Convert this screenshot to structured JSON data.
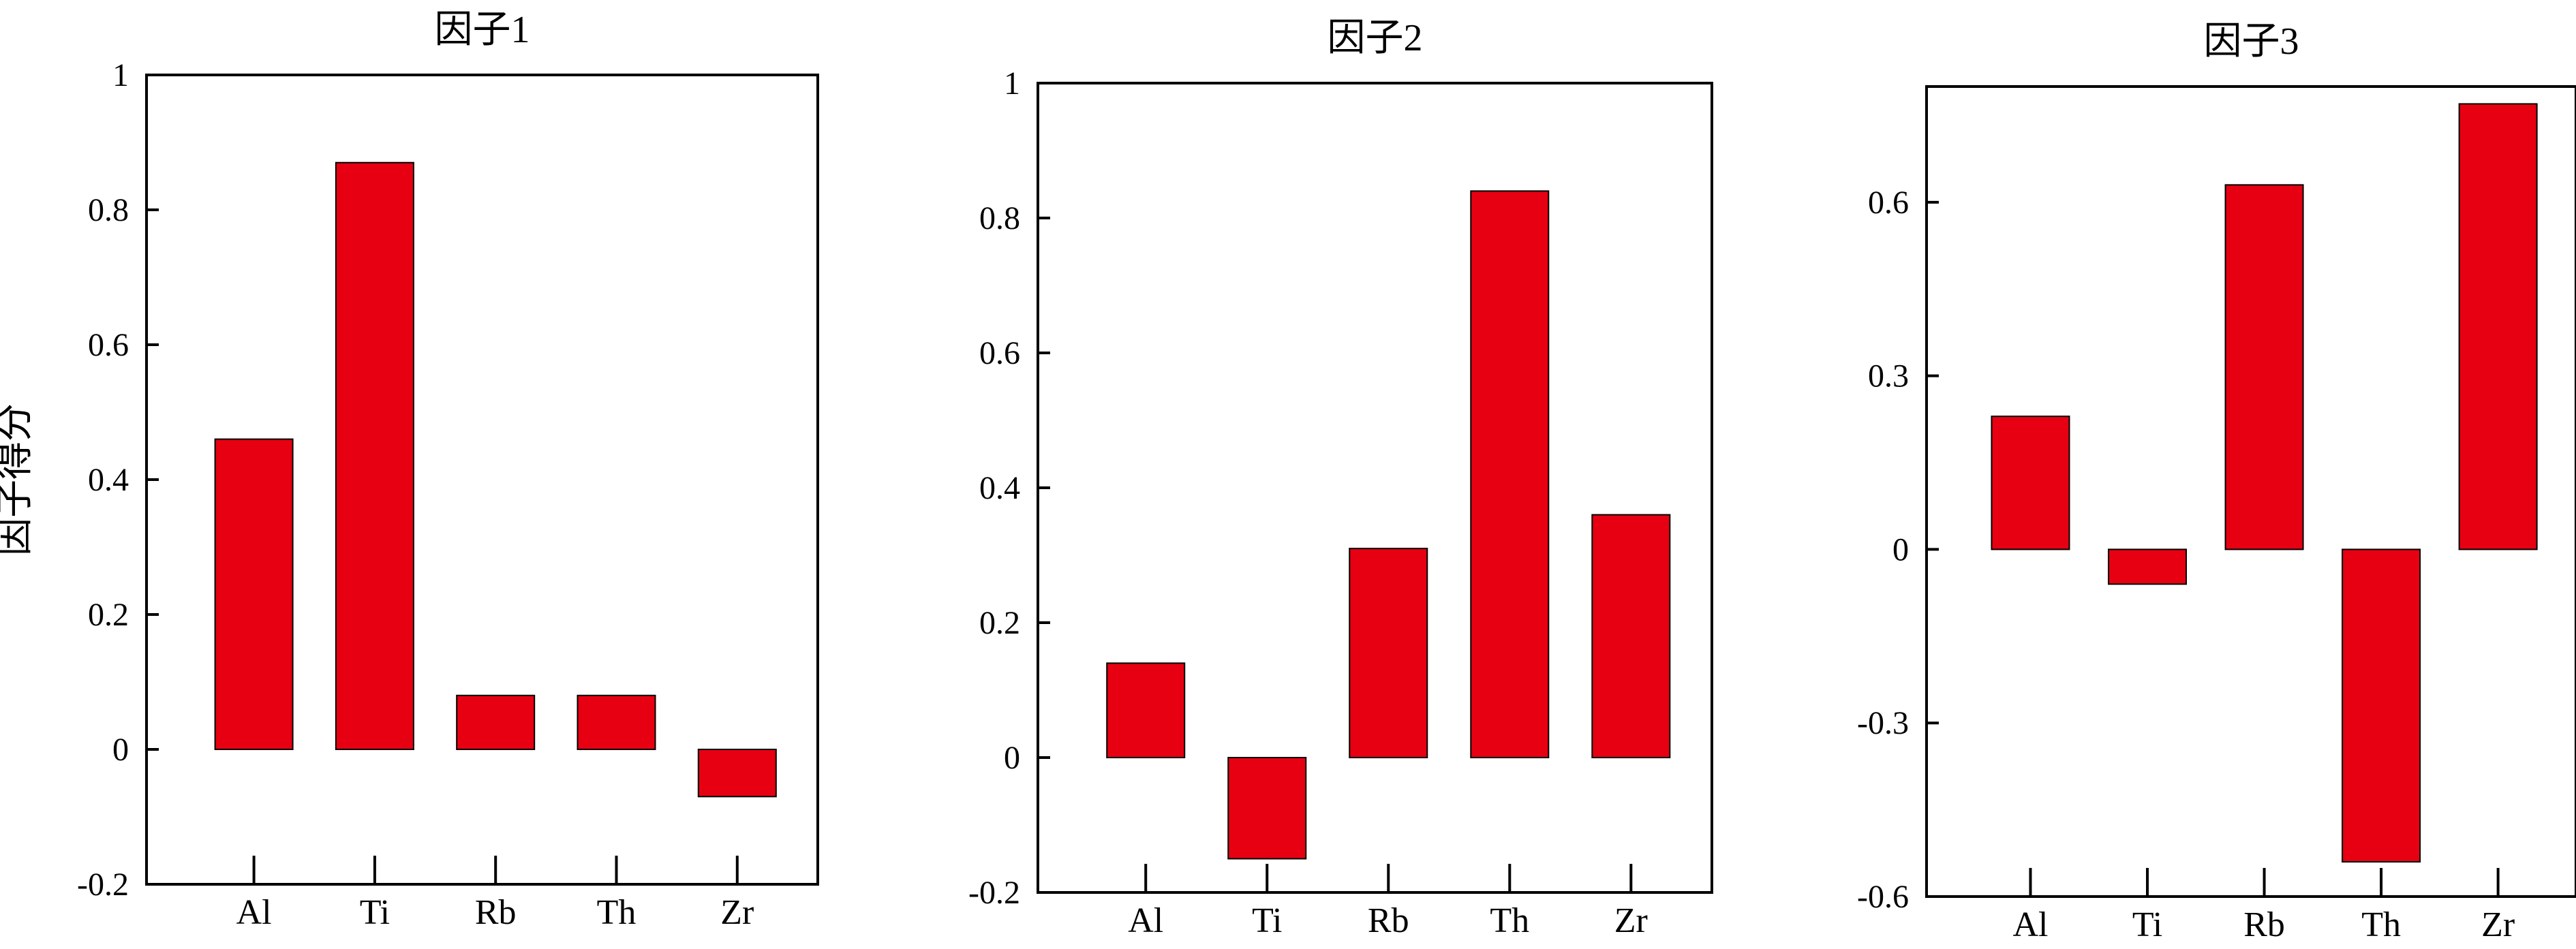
{
  "chart_data": [
    {
      "type": "bar",
      "title": "因子1",
      "ylabel": "因子得分",
      "xlabel": "",
      "categories": [
        "Al",
        "Ti",
        "Rb",
        "Th",
        "Zr"
      ],
      "values": [
        0.46,
        0.87,
        0.08,
        0.08,
        -0.07
      ],
      "ylim": [
        -0.2,
        1
      ],
      "yticks": [
        -0.2,
        0,
        0.2,
        0.4,
        0.6,
        0.8,
        1
      ],
      "ytick_labels": [
        "-0.2",
        "0",
        "0.2",
        "0.4",
        "0.6",
        "0.8",
        "1"
      ],
      "bar_color": "#e60012",
      "grid": false
    },
    {
      "type": "bar",
      "title": "因子2",
      "ylabel": "",
      "xlabel": "",
      "categories": [
        "Al",
        "Ti",
        "Rb",
        "Th",
        "Zr"
      ],
      "values": [
        0.14,
        -0.15,
        0.31,
        0.84,
        0.36
      ],
      "ylim": [
        -0.2,
        1
      ],
      "yticks": [
        -0.2,
        0,
        0.2,
        0.4,
        0.6,
        0.8,
        1
      ],
      "ytick_labels": [
        "-0.2",
        "0",
        "0.2",
        "0.4",
        "0.6",
        "0.8",
        "1"
      ],
      "bar_color": "#e60012",
      "grid": false
    },
    {
      "type": "bar",
      "title": "因子3",
      "ylabel": "",
      "xlabel": "",
      "categories": [
        "Al",
        "Ti",
        "Rb",
        "Th",
        "Zr"
      ],
      "values": [
        0.23,
        -0.06,
        0.63,
        -0.54,
        0.77
      ],
      "ylim": [
        -0.6,
        0.8
      ],
      "yticks": [
        -0.6,
        -0.3,
        0,
        0.3,
        0.6
      ],
      "ytick_labels": [
        "-0.6",
        "-0.3",
        "0",
        "0.3",
        "0.6"
      ],
      "bar_color": "#e60012",
      "grid": false
    }
  ]
}
